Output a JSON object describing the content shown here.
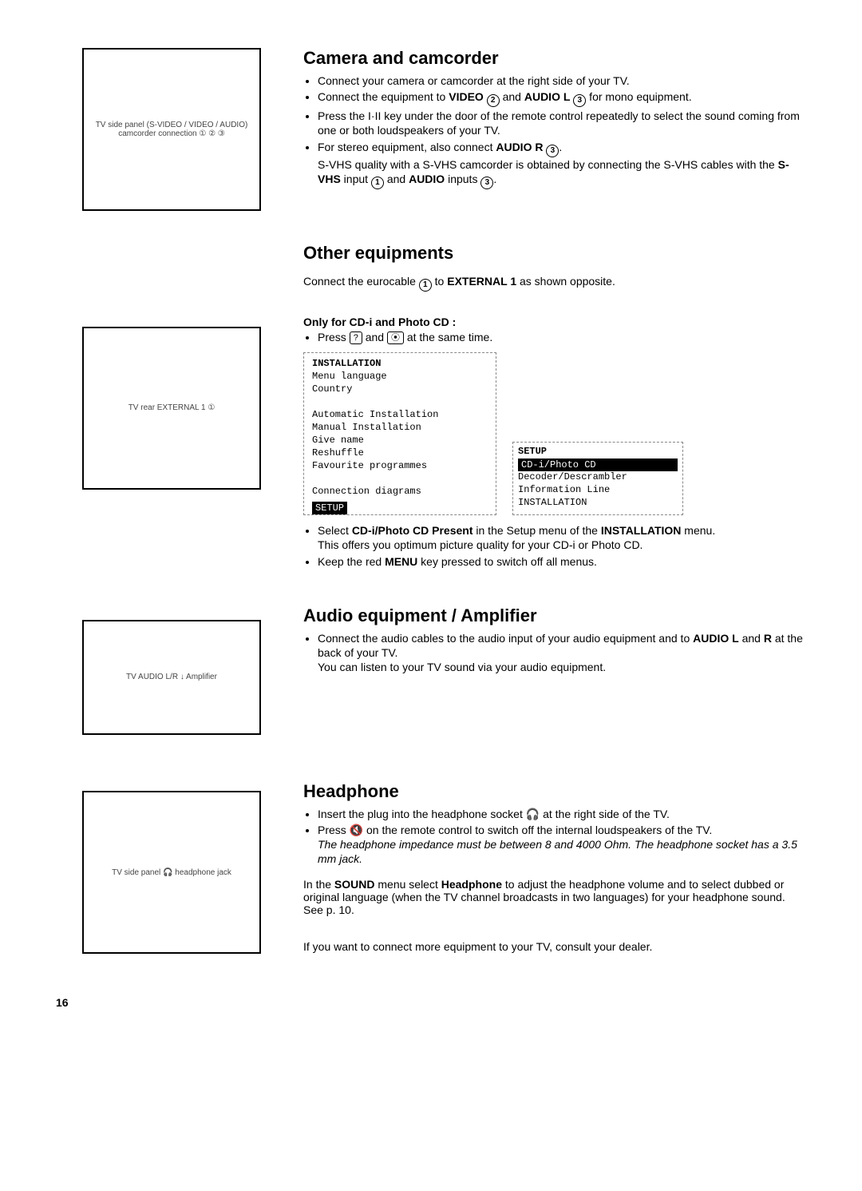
{
  "page_number": "16",
  "sections": {
    "camera": {
      "heading": "Camera and camcorder",
      "diagram_label": "TV side panel\n(S-VIDEO / VIDEO / AUDIO)\ncamcorder connection ① ② ③",
      "bullets": [
        {
          "pre": "Connect your camera or camcorder at the right side of your TV."
        },
        {
          "pre": "Connect the equipment to ",
          "b1": "VIDEO",
          "c1": "2",
          "mid": " and ",
          "b2": "AUDIO L",
          "c2": "3",
          "post": " for mono equipment."
        },
        {
          "pre": "Press the I·II key under the door of the remote control repeatedly to select the sound coming from one or both loudspeakers of your TV."
        },
        {
          "pre": "For stereo equipment, also connect ",
          "b1": "AUDIO R",
          "c1": "3",
          "post": ".",
          "line2_pre": "S-VHS quality with a S-VHS camcorder is obtained by connecting the S-VHS cables with the ",
          "line2_b1": "S-VHS",
          "line2_mid": " input ",
          "line2_c1": "1",
          "line2_mid2": " and ",
          "line2_b2": "AUDIO",
          "line2_mid3": " inputs ",
          "line2_c2": "3",
          "line2_post": "."
        }
      ]
    },
    "other": {
      "heading": "Other equipments",
      "intro_pre": "Connect the eurocable ",
      "intro_c": "1",
      "intro_mid": " to ",
      "intro_b": "EXTERNAL 1",
      "intro_post": " as shown opposite.",
      "diagram_label": "TV rear\nEXTERNAL 1 ①",
      "sub_heading": "Only for CD-i and Photo CD :",
      "press_pre": "Press ",
      "key1": "?",
      "press_mid": " and ",
      "key2": "⦿",
      "press_post": " at the same time.",
      "install_menu": {
        "title": "INSTALLATION",
        "items": [
          "Menu language",
          "Country",
          "",
          "Automatic Installation",
          "Manual Installation",
          "Give name",
          "Reshuffle",
          "Favourite programmes",
          "",
          "Connection diagrams"
        ],
        "footer": "SETUP"
      },
      "setup_menu": {
        "title": "SETUP",
        "highlight": "CD-i/Photo CD",
        "items": [
          "Decoder/Descrambler",
          "Information Line",
          "INSTALLATION"
        ]
      },
      "after_bullets": {
        "b1_pre": "Select ",
        "b1_b": "CD-i/Photo CD Present",
        "b1_mid": " in the Setup menu of the ",
        "b1_b2": "INSTALLATION",
        "b1_post": " menu.",
        "b1_line2": "This offers you optimum picture quality for your CD-i or Photo CD.",
        "b2_pre": "Keep the red ",
        "b2_b": "MENU",
        "b2_post": " key pressed to switch off all menus."
      }
    },
    "audio": {
      "heading": "Audio equipment / Amplifier",
      "diagram_label": "TV AUDIO L/R\n↓\nAmplifier",
      "bullet_pre": "Connect the audio cables to the audio input of your audio equipment and to ",
      "bullet_b": "AUDIO L",
      "bullet_mid": " and ",
      "bullet_b2": "R",
      "bullet_post": " at the back of your TV.",
      "bullet_line2": "You can listen to your TV sound via your audio equipment."
    },
    "headphone": {
      "heading": "Headphone",
      "diagram_label": "TV side panel\n🎧 headphone jack",
      "b1_pre": "Insert the plug into the headphone socket ",
      "b1_icon": "🎧",
      "b1_post": " at the right side of the TV.",
      "b2_pre": "Press ",
      "b2_icon": "🔇",
      "b2_post": " on the remote control to switch off the internal loudspeakers of the TV.",
      "italic": "The headphone impedance must be between 8 and 4000 Ohm. The headphone socket has a 3.5 mm jack.",
      "para_pre": "In the ",
      "para_b1": "SOUND",
      "para_mid1": " menu select ",
      "para_b2": "Headphone",
      "para_post": " to adjust the headphone volume and to select dubbed or original language (when the TV channel broadcasts in two languages) for your headphone sound. See p. 10.",
      "final": "If you want to connect more equipment to your TV, consult your dealer."
    }
  }
}
